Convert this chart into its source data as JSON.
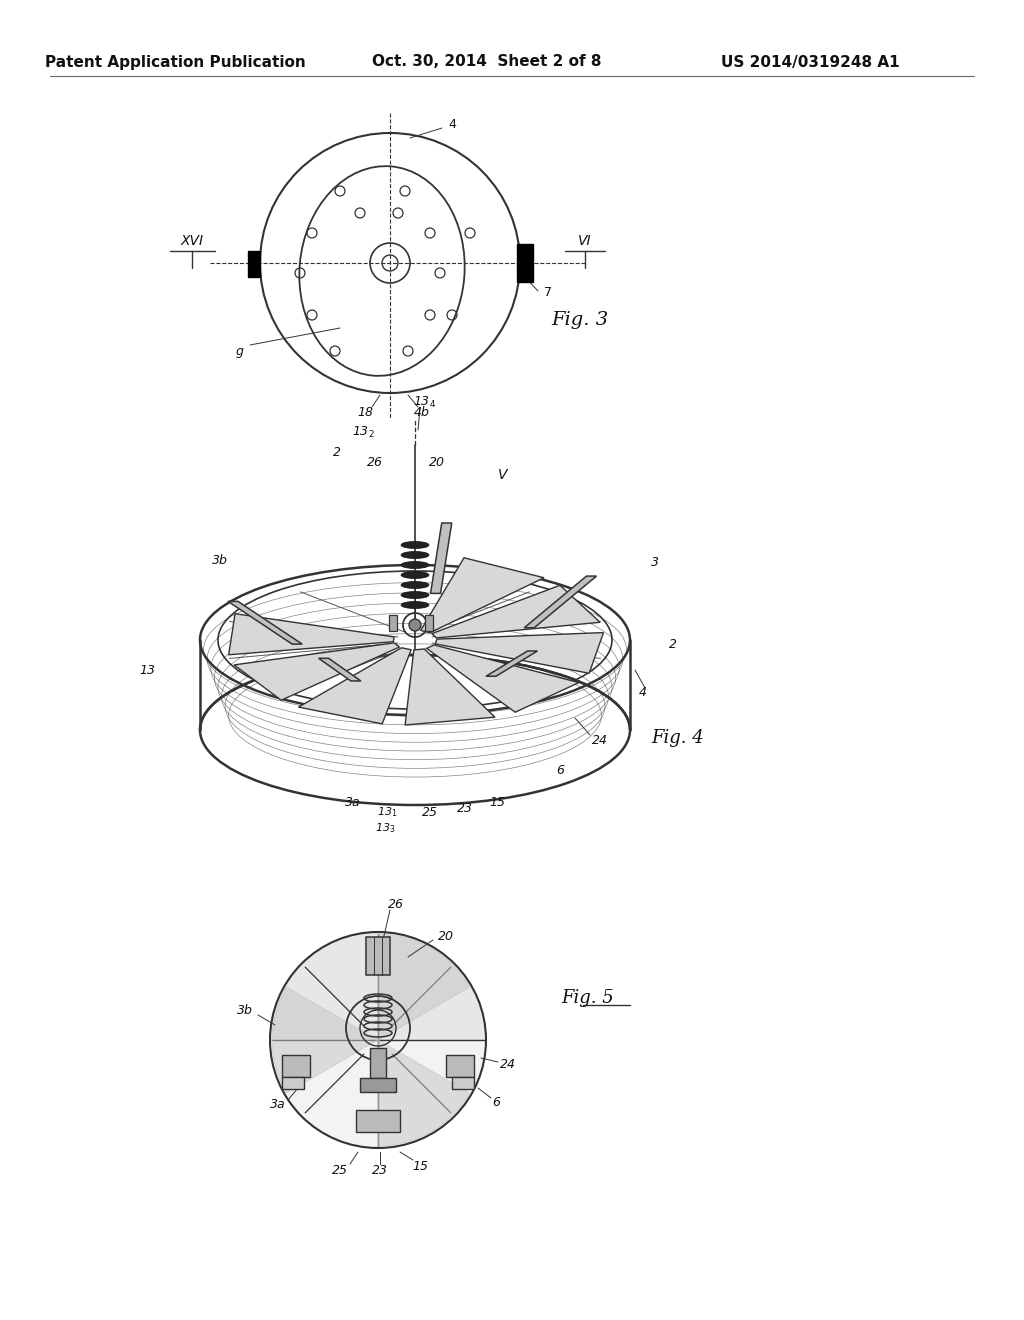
{
  "background_color": "#ffffff",
  "header_left": "Patent Application Publication",
  "header_center": "Oct. 30, 2014  Sheet 2 of 8",
  "header_right": "US 2014/0319248 A1",
  "line_color": "#333333",
  "text_color": "#111111"
}
